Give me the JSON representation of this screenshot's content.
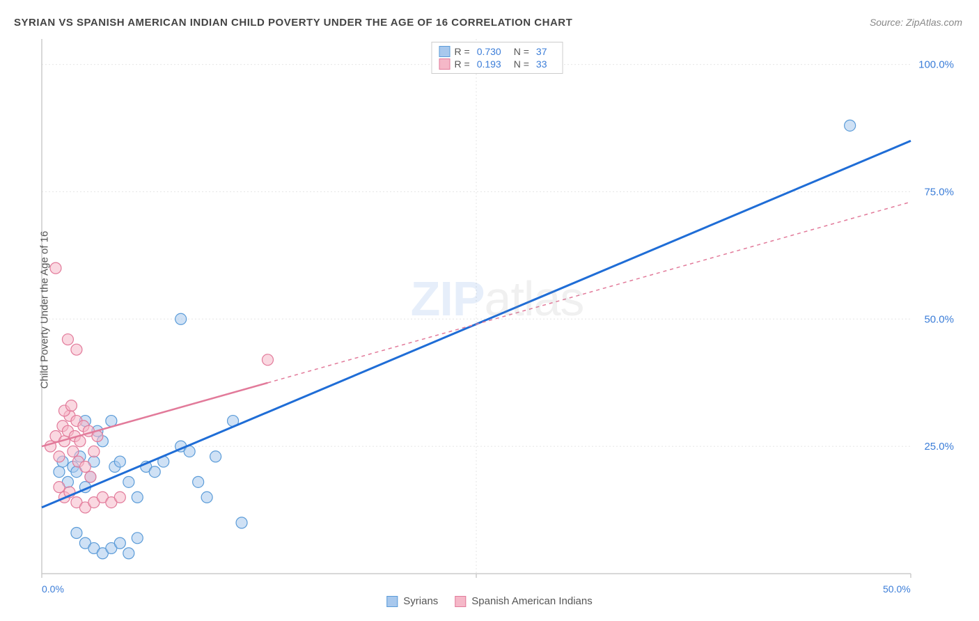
{
  "title": "SYRIAN VS SPANISH AMERICAN INDIAN CHILD POVERTY UNDER THE AGE OF 16 CORRELATION CHART",
  "source": "Source: ZipAtlas.com",
  "ylabel": "Child Poverty Under the Age of 16",
  "watermark_bold": "ZIP",
  "watermark_light": "atlas",
  "chart": {
    "type": "scatter",
    "xlim": [
      0,
      50
    ],
    "ylim": [
      0,
      105
    ],
    "xticks": [
      0,
      25,
      50
    ],
    "xtick_labels": [
      "0.0%",
      "",
      "50.0%"
    ],
    "yticks": [
      25,
      50,
      75,
      100
    ],
    "ytick_labels": [
      "25.0%",
      "50.0%",
      "75.0%",
      "100.0%"
    ],
    "background_color": "#ffffff",
    "grid_color": "#e5e5e5",
    "grid_dash": "2,3",
    "axis_color": "#cccccc",
    "marker_radius": 8,
    "marker_opacity": 0.55,
    "series": [
      {
        "name": "Syrians",
        "color_fill": "#a8c8ed",
        "color_stroke": "#5a9bd8",
        "R": "0.730",
        "N": "37",
        "trend": {
          "x1": 0,
          "y1": 13,
          "x2": 50,
          "y2": 85,
          "solid_until_x": 50,
          "color": "#1f6dd6",
          "width": 3
        },
        "points": [
          [
            1.0,
            20
          ],
          [
            1.2,
            22
          ],
          [
            1.5,
            18
          ],
          [
            1.8,
            21
          ],
          [
            2.0,
            20
          ],
          [
            2.2,
            23
          ],
          [
            2.5,
            17
          ],
          [
            2.8,
            19
          ],
          [
            3.0,
            22
          ],
          [
            3.2,
            28
          ],
          [
            3.5,
            26
          ],
          [
            4.0,
            30
          ],
          [
            4.2,
            21
          ],
          [
            4.5,
            22
          ],
          [
            5.0,
            18
          ],
          [
            5.5,
            15
          ],
          [
            2.0,
            8
          ],
          [
            2.5,
            6
          ],
          [
            3.0,
            5
          ],
          [
            3.5,
            4
          ],
          [
            4.0,
            5
          ],
          [
            4.5,
            6
          ],
          [
            5.0,
            4
          ],
          [
            5.5,
            7
          ],
          [
            6.0,
            21
          ],
          [
            6.5,
            20
          ],
          [
            7.0,
            22
          ],
          [
            8.0,
            25
          ],
          [
            8.5,
            24
          ],
          [
            9.0,
            18
          ],
          [
            9.5,
            15
          ],
          [
            10.0,
            23
          ],
          [
            11.0,
            30
          ],
          [
            11.5,
            10
          ],
          [
            8.0,
            50
          ],
          [
            46.5,
            88
          ],
          [
            2.5,
            30
          ]
        ]
      },
      {
        "name": "Spanish American Indians",
        "color_fill": "#f5b8c8",
        "color_stroke": "#e27a9a",
        "R": "0.193",
        "N": "33",
        "trend": {
          "x1": 0,
          "y1": 25,
          "x2": 50,
          "y2": 73,
          "solid_until_x": 13,
          "color": "#e27a9a",
          "width": 2.5
        },
        "points": [
          [
            0.5,
            25
          ],
          [
            0.8,
            27
          ],
          [
            1.0,
            23
          ],
          [
            1.2,
            29
          ],
          [
            1.3,
            26
          ],
          [
            1.5,
            28
          ],
          [
            1.6,
            31
          ],
          [
            1.8,
            24
          ],
          [
            1.9,
            27
          ],
          [
            2.0,
            30
          ],
          [
            2.1,
            22
          ],
          [
            2.2,
            26
          ],
          [
            2.4,
            29
          ],
          [
            2.5,
            21
          ],
          [
            2.7,
            28
          ],
          [
            2.8,
            19
          ],
          [
            3.0,
            24
          ],
          [
            3.2,
            27
          ],
          [
            1.0,
            17
          ],
          [
            1.3,
            15
          ],
          [
            1.6,
            16
          ],
          [
            2.0,
            14
          ],
          [
            2.5,
            13
          ],
          [
            3.0,
            14
          ],
          [
            3.5,
            15
          ],
          [
            4.0,
            14
          ],
          [
            4.5,
            15
          ],
          [
            1.3,
            32
          ],
          [
            1.7,
            33
          ],
          [
            0.8,
            60
          ],
          [
            1.5,
            46
          ],
          [
            2.0,
            44
          ],
          [
            13.0,
            42
          ]
        ]
      }
    ]
  },
  "legend_bottom": {
    "items": [
      {
        "label": "Syrians",
        "fill": "#a8c8ed",
        "stroke": "#5a9bd8"
      },
      {
        "label": "Spanish American Indians",
        "fill": "#f5b8c8",
        "stroke": "#e27a9a"
      }
    ]
  }
}
